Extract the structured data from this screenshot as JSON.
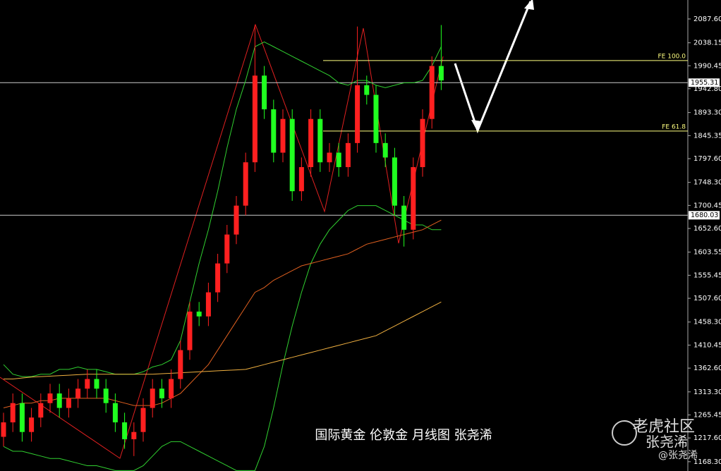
{
  "chart_data": {
    "type": "candlestick",
    "caption": "国际黄金 伦敦金 月线图 张尧浠",
    "watermark": {
      "brand": "老虎社区",
      "author": "张尧浠",
      "handle": "@张尧浠"
    },
    "ylim": [
      1149,
      2127
    ],
    "yticks": [
      {
        "value": 2087.6,
        "label": "2087.60"
      },
      2038.15,
      1990.45,
      {
        "value": 1942.8,
        "label": "1942.80"
      },
      {
        "value": 1893.3,
        "label": "1893.30"
      },
      1845.35,
      {
        "value": 1797.6,
        "label": "1797.60"
      },
      {
        "value": 1748.3,
        "label": "1748.30"
      },
      1700.45,
      {
        "value": 1652.6,
        "label": "1652.60"
      },
      1603.55,
      1555.45,
      {
        "value": 1507.6,
        "label": "1507.60"
      },
      {
        "value": 1458.3,
        "label": "1458.30"
      },
      1410.45,
      {
        "value": 1362.6,
        "label": "1362.60"
      },
      {
        "value": 1313.3,
        "label": "1313.30"
      },
      1265.45,
      {
        "value": 1217.6,
        "label": "1217.60"
      },
      {
        "value": 1168.3,
        "label": "1168.30"
      }
    ],
    "up_color": "#ff2020",
    "down_color": "#20ff20",
    "open": [
      1220,
      1250,
      1290,
      1230,
      1260,
      1290,
      1310,
      1280,
      1300,
      1320,
      1340,
      1320,
      1290,
      1250,
      1215,
      1230,
      1280,
      1320,
      1300,
      1340,
      1400,
      1480,
      1470,
      1520,
      1580,
      1640,
      1700,
      1790,
      1970,
      1900,
      1810,
      1880,
      1730,
      1780,
      1880,
      1790,
      1810,
      1780,
      1830,
      1950,
      1930,
      1830,
      1800,
      1700,
      1650,
      1780,
      1880,
      1990
    ],
    "high": [
      1270,
      1310,
      1310,
      1280,
      1310,
      1330,
      1330,
      1320,
      1340,
      1360,
      1360,
      1340,
      1310,
      1270,
      1250,
      1300,
      1340,
      1340,
      1360,
      1420,
      1500,
      1500,
      1540,
      1600,
      1660,
      1720,
      1810,
      2075,
      1990,
      1920,
      1900,
      1900,
      1800,
      1900,
      1900,
      1830,
      1830,
      1850,
      2072,
      1970,
      1950,
      1850,
      1820,
      1720,
      1800,
      1900,
      2010,
      2075
    ],
    "low": [
      1200,
      1230,
      1210,
      1210,
      1240,
      1270,
      1260,
      1260,
      1280,
      1300,
      1300,
      1270,
      1230,
      1195,
      1180,
      1210,
      1260,
      1280,
      1280,
      1320,
      1380,
      1450,
      1450,
      1500,
      1560,
      1620,
      1680,
      1770,
      1880,
      1790,
      1790,
      1710,
      1710,
      1760,
      1770,
      1770,
      1760,
      1760,
      1810,
      1910,
      1810,
      1780,
      1680,
      1615,
      1630,
      1760,
      1860,
      1940
    ],
    "close": [
      1250,
      1290,
      1230,
      1260,
      1290,
      1310,
      1280,
      1300,
      1320,
      1340,
      1320,
      1290,
      1250,
      1215,
      1230,
      1280,
      1320,
      1300,
      1340,
      1400,
      1480,
      1470,
      1520,
      1580,
      1640,
      1700,
      1790,
      1970,
      1900,
      1810,
      1880,
      1730,
      1780,
      1880,
      1790,
      1810,
      1780,
      1830,
      1950,
      1930,
      1830,
      1800,
      1700,
      1650,
      1780,
      1880,
      1990,
      1960
    ],
    "lines": [
      {
        "color": "#30d030",
        "values": [
          1370,
          1350,
          1345,
          1345,
          1350,
          1350,
          1360,
          1360,
          1365,
          1360,
          1360,
          1355,
          1350,
          1350,
          1350,
          1355,
          1365,
          1370,
          1380,
          1420,
          1500,
          1580,
          1650,
          1730,
          1820,
          1900,
          1960,
          2030,
          2040,
          2030,
          2020,
          2010,
          2000,
          1990,
          1980,
          1970,
          1955,
          1950,
          1960,
          1960,
          1950,
          1945,
          1950,
          1955,
          1955,
          1960,
          1990,
          2030
        ]
      },
      {
        "color": "#30d030",
        "values": [
          1200,
          1190,
          1190,
          1185,
          1180,
          1175,
          1175,
          1170,
          1165,
          1160,
          1160,
          1155,
          1150,
          1150,
          1150,
          1160,
          1180,
          1200,
          1210,
          1210,
          1200,
          1190,
          1180,
          1170,
          1160,
          1150,
          1150,
          1150,
          1200,
          1280,
          1370,
          1450,
          1520,
          1580,
          1620,
          1650,
          1670,
          1690,
          1700,
          1700,
          1700,
          1690,
          1680,
          1670,
          1660,
          1660,
          1650,
          1650
        ]
      },
      {
        "color": "#e06020",
        "values": [
          1280,
          1285,
          1290,
          1290,
          1295,
          1295,
          1300,
          1300,
          1300,
          1300,
          1300,
          1300,
          1295,
          1290,
          1285,
          1285,
          1285,
          1290,
          1300,
          1310,
          1330,
          1350,
          1370,
          1400,
          1430,
          1460,
          1490,
          1520,
          1530,
          1545,
          1555,
          1565,
          1575,
          1580,
          1585,
          1590,
          1595,
          1600,
          1610,
          1620,
          1625,
          1630,
          1635,
          1640,
          1645,
          1650,
          1660,
          1670
        ]
      },
      {
        "color": "#f0b040",
        "values": [
          1340,
          1340,
          1342,
          1344,
          1345,
          1346,
          1347,
          1348,
          1349,
          1350,
          1350,
          1350,
          1350,
          1350,
          1350,
          1350,
          1350,
          1351,
          1352,
          1353,
          1354,
          1355,
          1356,
          1357,
          1358,
          1359,
          1360,
          1365,
          1370,
          1375,
          1380,
          1385,
          1390,
          1395,
          1400,
          1405,
          1410,
          1415,
          1420,
          1425,
          1430,
          1440,
          1450,
          1460,
          1470,
          1480,
          1490,
          1500
        ]
      }
    ],
    "levels": [
      {
        "label": "FE 100.0",
        "value": 2001.2,
        "color": "#ffff80"
      },
      {
        "label": "FE 61.8",
        "value": 1854.8,
        "color": "#ffff80"
      }
    ],
    "price_lines": [
      1955.31,
      1680.03
    ]
  }
}
